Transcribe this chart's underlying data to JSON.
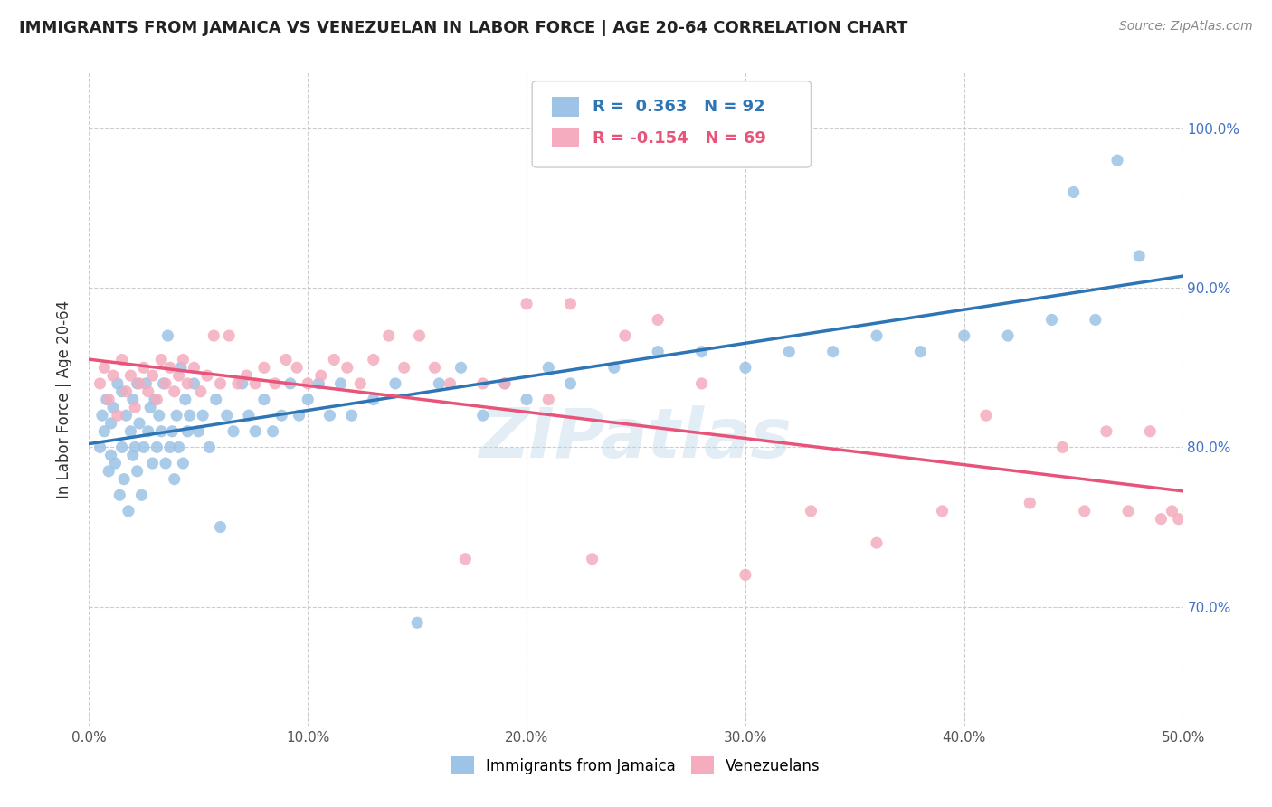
{
  "title": "IMMIGRANTS FROM JAMAICA VS VENEZUELAN IN LABOR FORCE | AGE 20-64 CORRELATION CHART",
  "source": "Source: ZipAtlas.com",
  "ylabel": "In Labor Force | Age 20-64",
  "xlim": [
    0.0,
    0.5
  ],
  "ylim": [
    0.625,
    1.035
  ],
  "ytick_labels": [
    "70.0%",
    "80.0%",
    "90.0%",
    "100.0%"
  ],
  "ytick_values": [
    0.7,
    0.8,
    0.9,
    1.0
  ],
  "xtick_labels": [
    "0.0%",
    "10.0%",
    "20.0%",
    "30.0%",
    "40.0%",
    "50.0%"
  ],
  "xtick_values": [
    0.0,
    0.1,
    0.2,
    0.3,
    0.4,
    0.5
  ],
  "jamaica_color": "#9DC3E6",
  "venezuela_color": "#F4ACBE",
  "jamaica_line_color": "#2E75B6",
  "venezuela_line_color": "#E8537A",
  "jamaica_R": 0.363,
  "jamaica_N": 92,
  "venezuela_R": -0.154,
  "venezuela_N": 69,
  "legend_label_jamaica": "Immigrants from Jamaica",
  "legend_label_venezuela": "Venezuelans",
  "watermark": "ZIPatlas",
  "jamaica_scatter_x": [
    0.005,
    0.006,
    0.007,
    0.008,
    0.009,
    0.01,
    0.01,
    0.011,
    0.012,
    0.013,
    0.014,
    0.015,
    0.015,
    0.016,
    0.017,
    0.018,
    0.019,
    0.02,
    0.02,
    0.021,
    0.022,
    0.022,
    0.023,
    0.024,
    0.025,
    0.026,
    0.027,
    0.028,
    0.029,
    0.03,
    0.031,
    0.032,
    0.033,
    0.034,
    0.035,
    0.036,
    0.037,
    0.038,
    0.039,
    0.04,
    0.041,
    0.042,
    0.043,
    0.044,
    0.045,
    0.046,
    0.048,
    0.05,
    0.052,
    0.055,
    0.058,
    0.06,
    0.063,
    0.066,
    0.07,
    0.073,
    0.076,
    0.08,
    0.084,
    0.088,
    0.092,
    0.096,
    0.1,
    0.105,
    0.11,
    0.115,
    0.12,
    0.13,
    0.14,
    0.15,
    0.16,
    0.17,
    0.18,
    0.19,
    0.2,
    0.21,
    0.22,
    0.24,
    0.26,
    0.28,
    0.3,
    0.32,
    0.34,
    0.36,
    0.38,
    0.4,
    0.42,
    0.44,
    0.45,
    0.46,
    0.47,
    0.48
  ],
  "jamaica_scatter_y": [
    0.8,
    0.82,
    0.81,
    0.83,
    0.785,
    0.795,
    0.815,
    0.825,
    0.79,
    0.84,
    0.77,
    0.8,
    0.835,
    0.78,
    0.82,
    0.76,
    0.81,
    0.795,
    0.83,
    0.8,
    0.84,
    0.785,
    0.815,
    0.77,
    0.8,
    0.84,
    0.81,
    0.825,
    0.79,
    0.83,
    0.8,
    0.82,
    0.81,
    0.84,
    0.79,
    0.87,
    0.8,
    0.81,
    0.78,
    0.82,
    0.8,
    0.85,
    0.79,
    0.83,
    0.81,
    0.82,
    0.84,
    0.81,
    0.82,
    0.8,
    0.83,
    0.75,
    0.82,
    0.81,
    0.84,
    0.82,
    0.81,
    0.83,
    0.81,
    0.82,
    0.84,
    0.82,
    0.83,
    0.84,
    0.82,
    0.84,
    0.82,
    0.83,
    0.84,
    0.69,
    0.84,
    0.85,
    0.82,
    0.84,
    0.83,
    0.85,
    0.84,
    0.85,
    0.86,
    0.86,
    0.85,
    0.86,
    0.86,
    0.87,
    0.86,
    0.87,
    0.87,
    0.88,
    0.96,
    0.88,
    0.98,
    0.92
  ],
  "venezuela_scatter_x": [
    0.005,
    0.007,
    0.009,
    0.011,
    0.013,
    0.015,
    0.017,
    0.019,
    0.021,
    0.023,
    0.025,
    0.027,
    0.029,
    0.031,
    0.033,
    0.035,
    0.037,
    0.039,
    0.041,
    0.043,
    0.045,
    0.048,
    0.051,
    0.054,
    0.057,
    0.06,
    0.064,
    0.068,
    0.072,
    0.076,
    0.08,
    0.085,
    0.09,
    0.095,
    0.1,
    0.106,
    0.112,
    0.118,
    0.124,
    0.13,
    0.137,
    0.144,
    0.151,
    0.158,
    0.165,
    0.172,
    0.18,
    0.19,
    0.2,
    0.21,
    0.22,
    0.23,
    0.245,
    0.26,
    0.28,
    0.3,
    0.33,
    0.36,
    0.39,
    0.41,
    0.43,
    0.445,
    0.455,
    0.465,
    0.475,
    0.485,
    0.49,
    0.495,
    0.498
  ],
  "venezuela_scatter_y": [
    0.84,
    0.85,
    0.83,
    0.845,
    0.82,
    0.855,
    0.835,
    0.845,
    0.825,
    0.84,
    0.85,
    0.835,
    0.845,
    0.83,
    0.855,
    0.84,
    0.85,
    0.835,
    0.845,
    0.855,
    0.84,
    0.85,
    0.835,
    0.845,
    0.87,
    0.84,
    0.87,
    0.84,
    0.845,
    0.84,
    0.85,
    0.84,
    0.855,
    0.85,
    0.84,
    0.845,
    0.855,
    0.85,
    0.84,
    0.855,
    0.87,
    0.85,
    0.87,
    0.85,
    0.84,
    0.73,
    0.84,
    0.84,
    0.89,
    0.83,
    0.89,
    0.73,
    0.87,
    0.88,
    0.84,
    0.72,
    0.76,
    0.74,
    0.76,
    0.82,
    0.765,
    0.8,
    0.76,
    0.81,
    0.76,
    0.81,
    0.755,
    0.76,
    0.755
  ]
}
